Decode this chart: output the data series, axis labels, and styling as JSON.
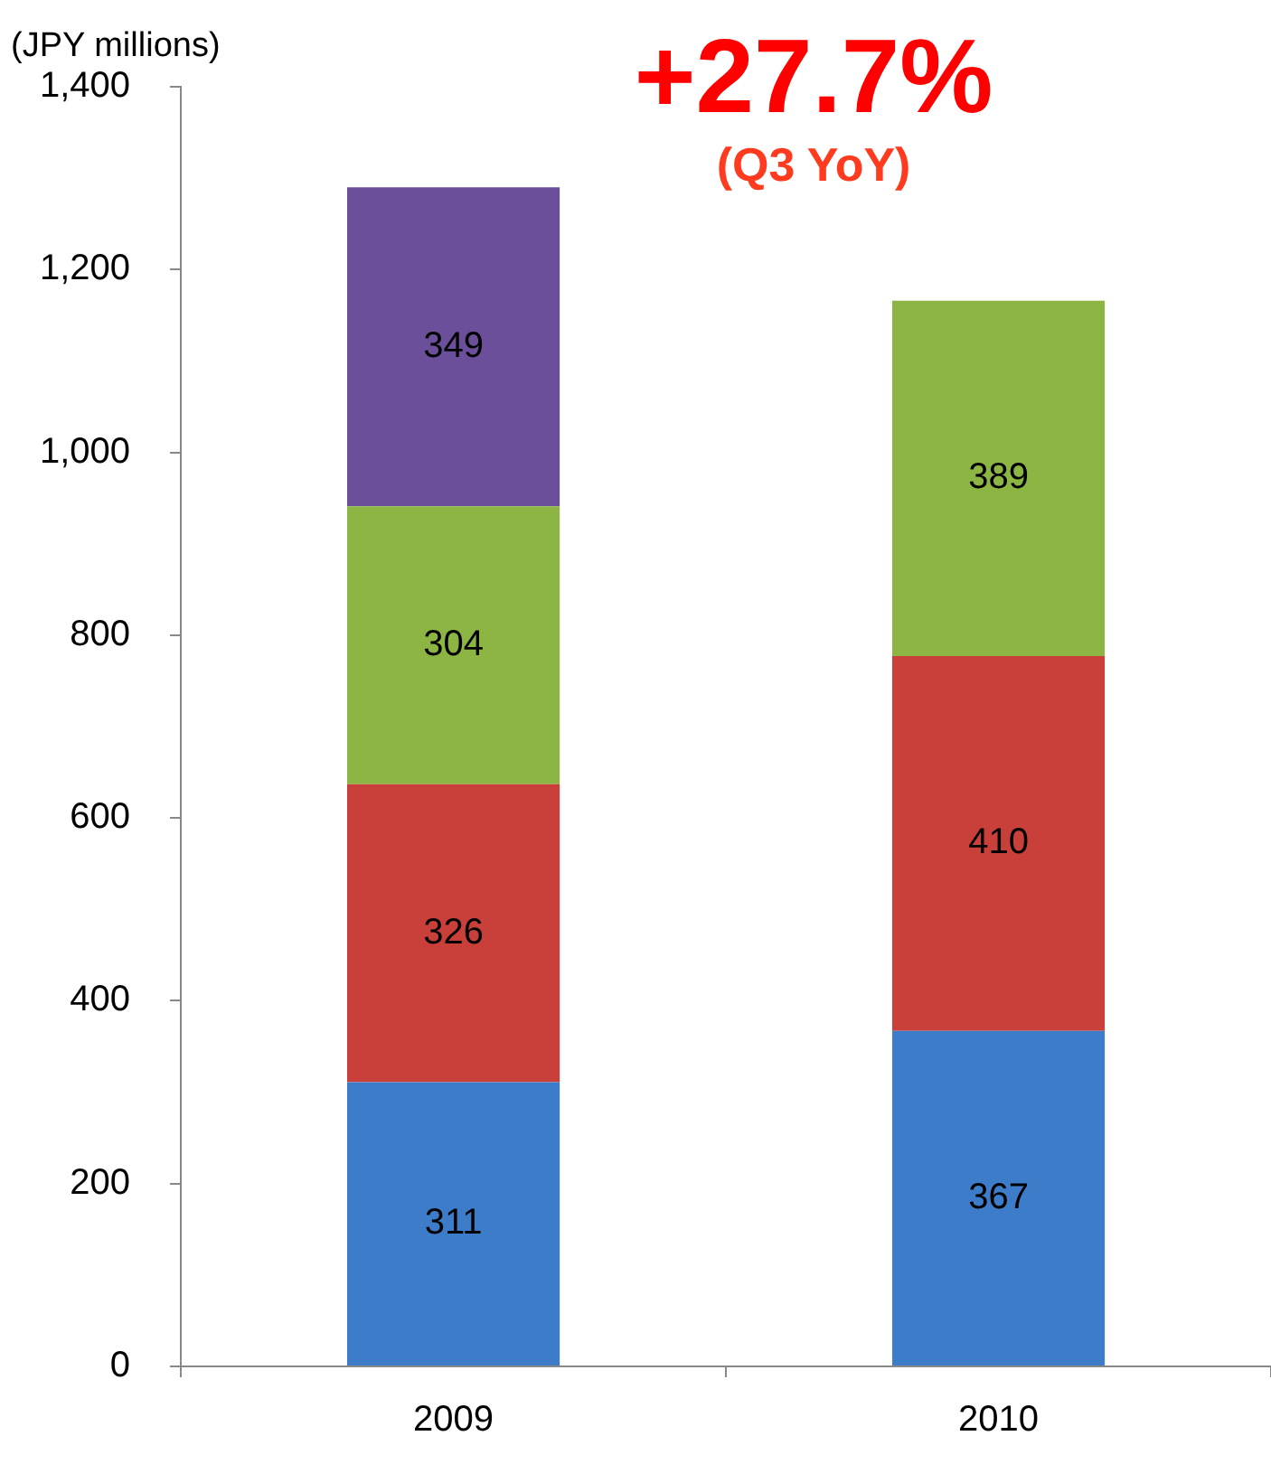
{
  "chart_data": {
    "type": "bar",
    "title": "+27.7%",
    "subtitle": "(Q3 YoY)",
    "ylabel": "(JPY millions)",
    "categories": [
      "2009",
      "2010"
    ],
    "stacked": true,
    "data_labels": true,
    "grid": false,
    "legend": false,
    "series": [
      {
        "color": "#3d7cc9",
        "values": [
          311,
          367
        ]
      },
      {
        "color": "#c9403a",
        "values": [
          326,
          410
        ]
      },
      {
        "color": "#8db544",
        "values": [
          304,
          389
        ]
      },
      {
        "color": "#6b4f9a",
        "values": [
          349,
          null
        ]
      }
    ],
    "ylim": [
      0,
      1400
    ],
    "yticks": [
      0,
      200,
      400,
      600,
      800,
      {
        "value": 1000,
        "label": "1,000"
      },
      {
        "value": 1200,
        "label": "1,200"
      },
      {
        "value": 1400,
        "label": "1,400"
      }
    ]
  }
}
